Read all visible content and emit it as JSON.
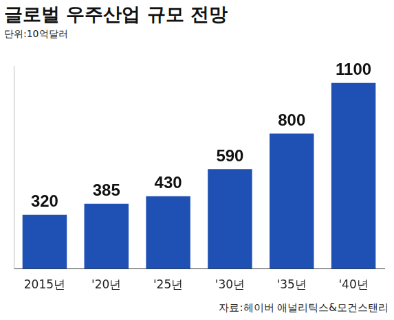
{
  "chart_data": {
    "type": "bar",
    "title": "글로벌 우주산업 규모 전망",
    "subtitle": "단위:10억달러",
    "annotations": [
      "자료:헤이버 애널리틱스&모건스탠리"
    ],
    "categories": [
      "2015년",
      "'20년",
      "'25년",
      "'30년",
      "'35년",
      "'40년"
    ],
    "values": [
      320,
      385,
      430,
      590,
      800,
      1100
    ],
    "color": "#1f50b4",
    "ylim": [
      0,
      1200
    ],
    "grid": false,
    "data_labels": true,
    "tick_labels": "x"
  }
}
